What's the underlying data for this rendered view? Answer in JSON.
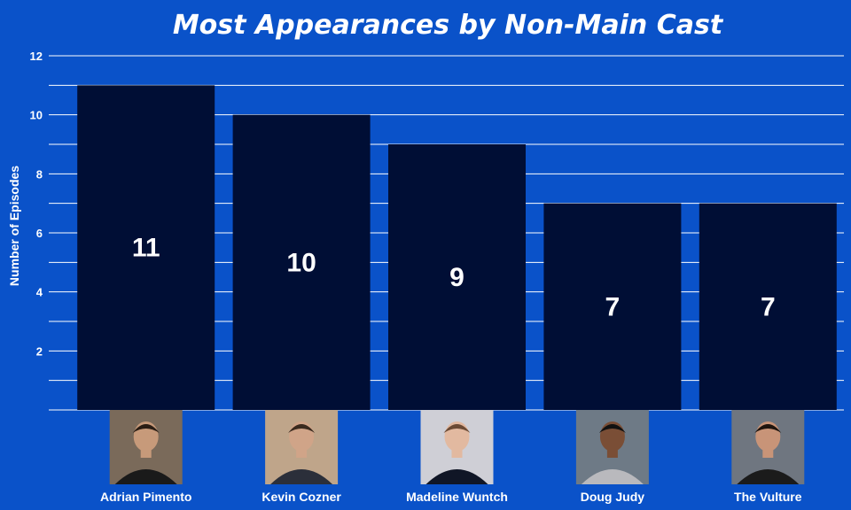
{
  "chart_data": {
    "type": "bar",
    "title": "Most Appearances by Non-Main Cast",
    "xlabel": "",
    "ylabel": "Number of Episodes",
    "categories": [
      "Adrian Pimento",
      "Kevin Cozner",
      "Madeline Wuntch",
      "Doug Judy",
      "The Vulture"
    ],
    "values": [
      11,
      10,
      9,
      7,
      7
    ],
    "ylim": [
      0,
      12
    ],
    "yticks": [
      2,
      4,
      6,
      8,
      10,
      12
    ],
    "grid": true,
    "grid_step": 1,
    "legend": "none",
    "data_labels": true,
    "category_images": [
      "photo-adrian-pimento",
      "photo-kevin-cozner",
      "photo-madeline-wuntch",
      "photo-doug-judy",
      "photo-the-vulture"
    ]
  },
  "colors": {
    "background": "#0a52c9",
    "bar": "#000e35",
    "grid": "#ffffff",
    "text": "#ffffff"
  }
}
